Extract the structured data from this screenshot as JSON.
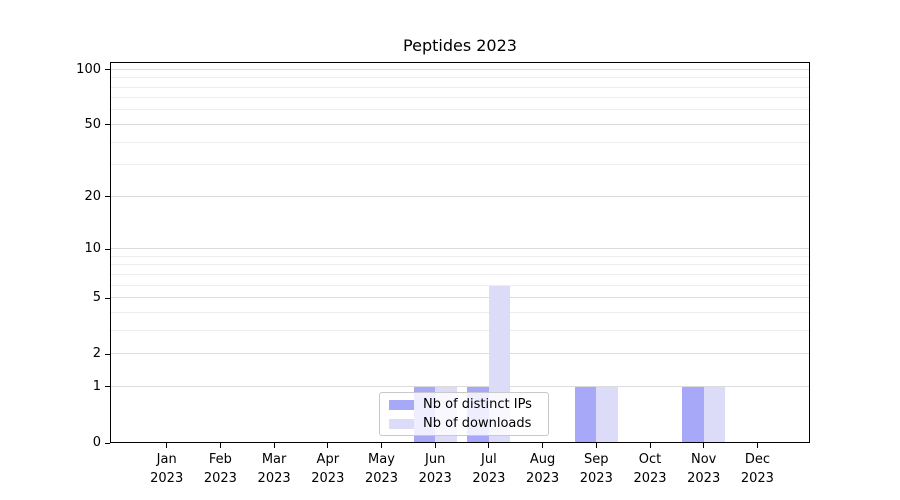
{
  "title": "Peptides 2023",
  "chart_data": {
    "type": "bar",
    "title": "Peptides 2023",
    "categories": [
      "Jan 2023",
      "Feb 2023",
      "Mar 2023",
      "Apr 2023",
      "May 2023",
      "Jun 2023",
      "Jul 2023",
      "Aug 2023",
      "Sep 2023",
      "Oct 2023",
      "Nov 2023",
      "Dec 2023"
    ],
    "series": [
      {
        "name": "Nb of distinct IPs",
        "color": "#a8a8f8",
        "values": [
          0,
          0,
          0,
          0,
          0,
          1,
          1,
          0,
          1,
          0,
          1,
          0
        ]
      },
      {
        "name": "Nb of downloads",
        "color": "#dcdcf8",
        "values": [
          0,
          0,
          0,
          0,
          0,
          1,
          6,
          0,
          1,
          0,
          1,
          0
        ]
      }
    ],
    "xlabel": "",
    "ylabel": "",
    "yscale": "log1p",
    "ylim": [
      0,
      110
    ],
    "yticks_major": [
      0,
      1,
      2,
      5,
      10,
      20,
      50,
      100
    ],
    "yticks_minor": [
      3,
      4,
      6,
      7,
      8,
      9,
      30,
      40,
      60,
      70,
      80,
      90
    ],
    "grid": "both",
    "legend_position": "lower center"
  },
  "colors": {
    "bar_distinct_ips": "#a8a8f8",
    "bar_downloads": "#dcdcf8",
    "major_grid": "#dcdcdc",
    "minor_grid": "#ededed",
    "axis": "#000000",
    "background": "#ffffff"
  }
}
